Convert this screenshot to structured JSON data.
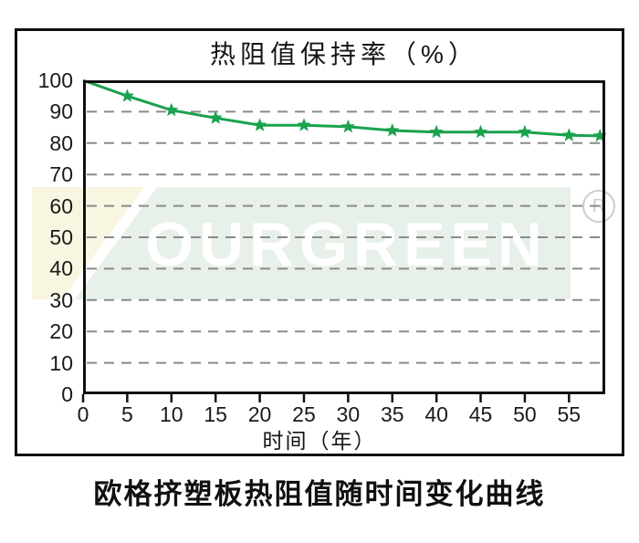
{
  "page": {
    "caption": "欧格挤塑板热阻值随时间变化曲线"
  },
  "watermark": {
    "text": "OURGREEN",
    "registered_mark": "R",
    "band_color": "#e7f0e9",
    "accent_color": "#f8f5e1"
  },
  "chart_data": {
    "type": "line",
    "title": "热阻值保持率（%）",
    "xlabel": "时间（年）",
    "ylabel": "",
    "series": [
      {
        "name": "热阻值保持率",
        "x": [
          0,
          5,
          10,
          15,
          20,
          25,
          30,
          35,
          40,
          45,
          50,
          55,
          58.5
        ],
        "y": [
          100,
          95,
          90.5,
          88,
          85.7,
          85.7,
          85.2,
          84,
          83.5,
          83.5,
          83.5,
          82.5,
          82.3
        ]
      }
    ],
    "x_ticks": [
      0,
      5,
      10,
      15,
      20,
      25,
      30,
      35,
      40,
      45,
      50,
      55
    ],
    "y_ticks": [
      0,
      10,
      20,
      30,
      40,
      50,
      60,
      70,
      80,
      90,
      100
    ],
    "xlim": [
      0,
      59.1
    ],
    "ylim": [
      0,
      100
    ],
    "grid": "horizontal-dashed",
    "grid_color": "#8a8a8a",
    "line_color": "#1aa24e",
    "marker": "star"
  }
}
